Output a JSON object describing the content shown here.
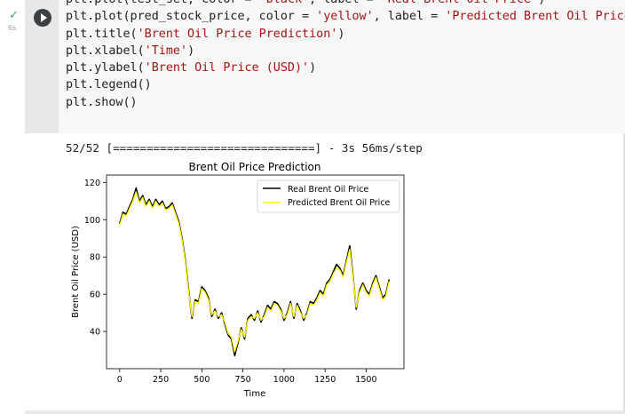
{
  "cell": {
    "runtime": "6s",
    "code_lines": [
      {
        "segments": [
          {
            "t": "plt.plot(test_set, color = ",
            "s": false
          },
          {
            "t": "'black'",
            "s": true
          },
          {
            "t": ", label = ",
            "s": false
          },
          {
            "t": "'Real Brent Oil Price'",
            "s": true
          },
          {
            "t": ")",
            "s": false
          }
        ]
      },
      {
        "segments": [
          {
            "t": "plt.plot(pred_stock_price, color = ",
            "s": false
          },
          {
            "t": "'yellow'",
            "s": true
          },
          {
            "t": ", label = ",
            "s": false
          },
          {
            "t": "'Predicted Brent Oil Price'",
            "s": true
          },
          {
            "t": ")",
            "s": false
          }
        ]
      },
      {
        "segments": [
          {
            "t": "plt.title(",
            "s": false
          },
          {
            "t": "'Brent Oil Price Prediction'",
            "s": true
          },
          {
            "t": ")",
            "s": false
          }
        ]
      },
      {
        "segments": [
          {
            "t": "plt.xlabel(",
            "s": false
          },
          {
            "t": "'Time'",
            "s": true
          },
          {
            "t": ")",
            "s": false
          }
        ]
      },
      {
        "segments": [
          {
            "t": "plt.ylabel(",
            "s": false
          },
          {
            "t": "'Brent Oil Price (USD)'",
            "s": true
          },
          {
            "t": ")",
            "s": false
          }
        ]
      },
      {
        "segments": [
          {
            "t": "plt.legend()",
            "s": false
          }
        ]
      },
      {
        "segments": [
          {
            "t": "plt.show()",
            "s": false
          }
        ]
      }
    ]
  },
  "output": {
    "progress_text": "52/52 [==============================] - 3s 56ms/step"
  },
  "chart_data": {
    "type": "line",
    "title": "Brent Oil Price Prediction",
    "xlabel": "Time",
    "ylabel": "Brent Oil Price (USD)",
    "xlim": [
      -80,
      1730
    ],
    "ylim": [
      20,
      124
    ],
    "xticks": [
      0,
      250,
      500,
      750,
      1000,
      1250,
      1500
    ],
    "yticks": [
      40,
      60,
      80,
      100,
      120
    ],
    "legend_position": "top-right",
    "series": [
      {
        "name": "Real Brent Oil Price",
        "color": "#000000",
        "x": [
          0,
          20,
          40,
          60,
          80,
          100,
          120,
          140,
          160,
          180,
          200,
          220,
          240,
          260,
          280,
          300,
          320,
          340,
          360,
          380,
          400,
          420,
          440,
          460,
          480,
          500,
          520,
          540,
          560,
          580,
          600,
          620,
          640,
          660,
          680,
          700,
          720,
          740,
          760,
          780,
          800,
          820,
          840,
          860,
          880,
          900,
          920,
          940,
          960,
          980,
          1000,
          1020,
          1040,
          1060,
          1080,
          1100,
          1120,
          1140,
          1160,
          1180,
          1200,
          1220,
          1240,
          1260,
          1280,
          1300,
          1320,
          1340,
          1360,
          1380,
          1400,
          1420,
          1440,
          1460,
          1480,
          1500,
          1520,
          1540,
          1560,
          1580,
          1600,
          1620,
          1640
        ],
        "y": [
          98,
          104,
          103,
          107,
          111,
          117,
          110,
          113,
          108,
          111,
          107,
          111,
          108,
          110,
          106,
          107,
          109,
          104,
          99,
          90,
          78,
          62,
          47,
          57,
          56,
          64,
          62,
          58,
          48,
          52,
          47,
          50,
          44,
          38,
          36,
          27,
          34,
          42,
          36,
          47,
          49,
          46,
          51,
          45,
          49,
          54,
          52,
          56,
          55,
          52,
          46,
          50,
          56,
          47,
          55,
          51,
          46,
          50,
          56,
          55,
          58,
          62,
          60,
          66,
          68,
          72,
          76,
          74,
          70,
          78,
          86,
          70,
          52,
          62,
          66,
          62,
          60,
          66,
          70,
          64,
          58,
          60,
          68
        ]
      },
      {
        "name": "Predicted Brent Oil Price",
        "color": "#ffff00",
        "x": [
          0,
          20,
          40,
          60,
          80,
          100,
          120,
          140,
          160,
          180,
          200,
          220,
          240,
          260,
          280,
          300,
          320,
          340,
          360,
          380,
          400,
          420,
          440,
          460,
          480,
          500,
          520,
          540,
          560,
          580,
          600,
          620,
          640,
          660,
          680,
          700,
          720,
          740,
          760,
          780,
          800,
          820,
          840,
          860,
          880,
          900,
          920,
          940,
          960,
          980,
          1000,
          1020,
          1040,
          1060,
          1080,
          1100,
          1120,
          1140,
          1160,
          1180,
          1200,
          1220,
          1240,
          1260,
          1280,
          1300,
          1320,
          1340,
          1360,
          1380,
          1400,
          1420,
          1440,
          1460,
          1480,
          1500,
          1520,
          1540,
          1560,
          1580,
          1600,
          1620,
          1640
        ],
        "y": [
          97,
          103,
          102,
          106,
          110,
          115,
          109,
          112,
          107,
          110,
          106,
          110,
          107,
          109,
          105,
          106,
          108,
          103,
          98,
          89,
          77,
          61,
          48,
          56,
          55,
          63,
          61,
          57,
          49,
          51,
          48,
          49,
          45,
          39,
          37,
          29,
          35,
          41,
          37,
          46,
          48,
          47,
          50,
          46,
          48,
          53,
          51,
          55,
          54,
          51,
          47,
          49,
          55,
          48,
          54,
          50,
          47,
          49,
          55,
          54,
          57,
          61,
          59,
          65,
          67,
          71,
          74,
          73,
          69,
          77,
          84,
          69,
          53,
          61,
          65,
          61,
          59,
          65,
          69,
          63,
          57,
          59,
          67
        ]
      }
    ]
  }
}
